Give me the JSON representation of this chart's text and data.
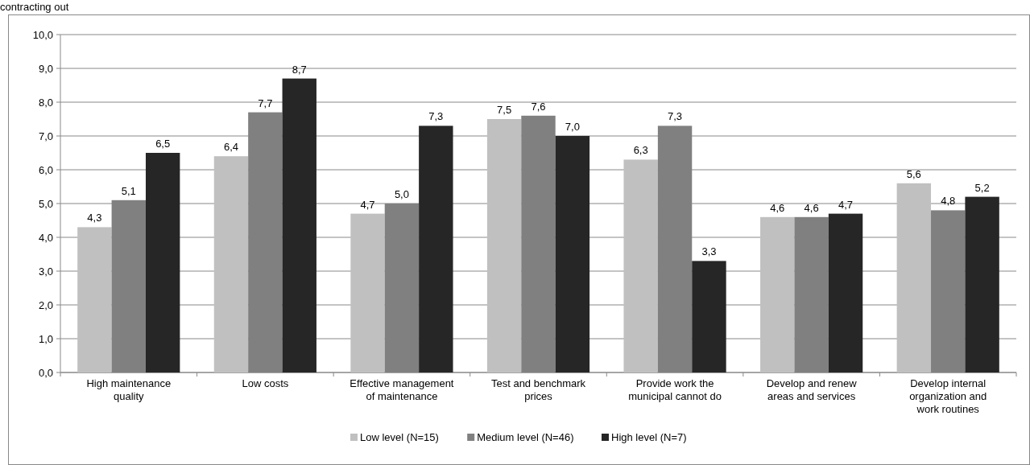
{
  "chart_data": {
    "type": "bar",
    "title": "contracting out",
    "categories": [
      "High maintenance quality",
      "Low costs",
      "Effective management of maintenance",
      "Test and benchmark prices",
      "Provide work the municipal cannot do",
      "Develop and renew areas and services",
      "Develop internal organization and work routines"
    ],
    "series": [
      {
        "name": "Low level (N=15)",
        "color": "#c0c0c0",
        "values": [
          4.3,
          6.4,
          4.7,
          7.5,
          6.3,
          4.6,
          5.6
        ],
        "value_labels": [
          "4,3",
          "6,4",
          "4,7",
          "7,5",
          "6,3",
          "4,6",
          "5,6"
        ]
      },
      {
        "name": "Medium level (N=46)",
        "color": "#808080",
        "values": [
          5.1,
          7.7,
          5.0,
          7.6,
          7.3,
          4.6,
          4.8
        ],
        "value_labels": [
          "5,1",
          "7,7",
          "5,0",
          "7,6",
          "7,3",
          "4,6",
          "4,8"
        ]
      },
      {
        "name": "High level (N=7)",
        "color": "#262626",
        "values": [
          6.5,
          8.7,
          7.3,
          7.0,
          3.3,
          4.7,
          5.2
        ],
        "value_labels": [
          "6,5",
          "8,7",
          "7,3",
          "7,0",
          "3,3",
          "4,7",
          "5,2"
        ]
      }
    ],
    "ylim": [
      0,
      10
    ],
    "yticks": [
      {
        "value": 0,
        "label": "0,0"
      },
      {
        "value": 1,
        "label": "1,0"
      },
      {
        "value": 2,
        "label": "2,0"
      },
      {
        "value": 3,
        "label": "3,0"
      },
      {
        "value": 4,
        "label": "4,0"
      },
      {
        "value": 5,
        "label": "5,0"
      },
      {
        "value": 6,
        "label": "6,0"
      },
      {
        "value": 7,
        "label": "7,0"
      },
      {
        "value": 8,
        "label": "8,0"
      },
      {
        "value": 9,
        "label": "9,0"
      },
      {
        "value": 10,
        "label": "10,0"
      }
    ],
    "grid": "y",
    "legend": "bottom"
  }
}
